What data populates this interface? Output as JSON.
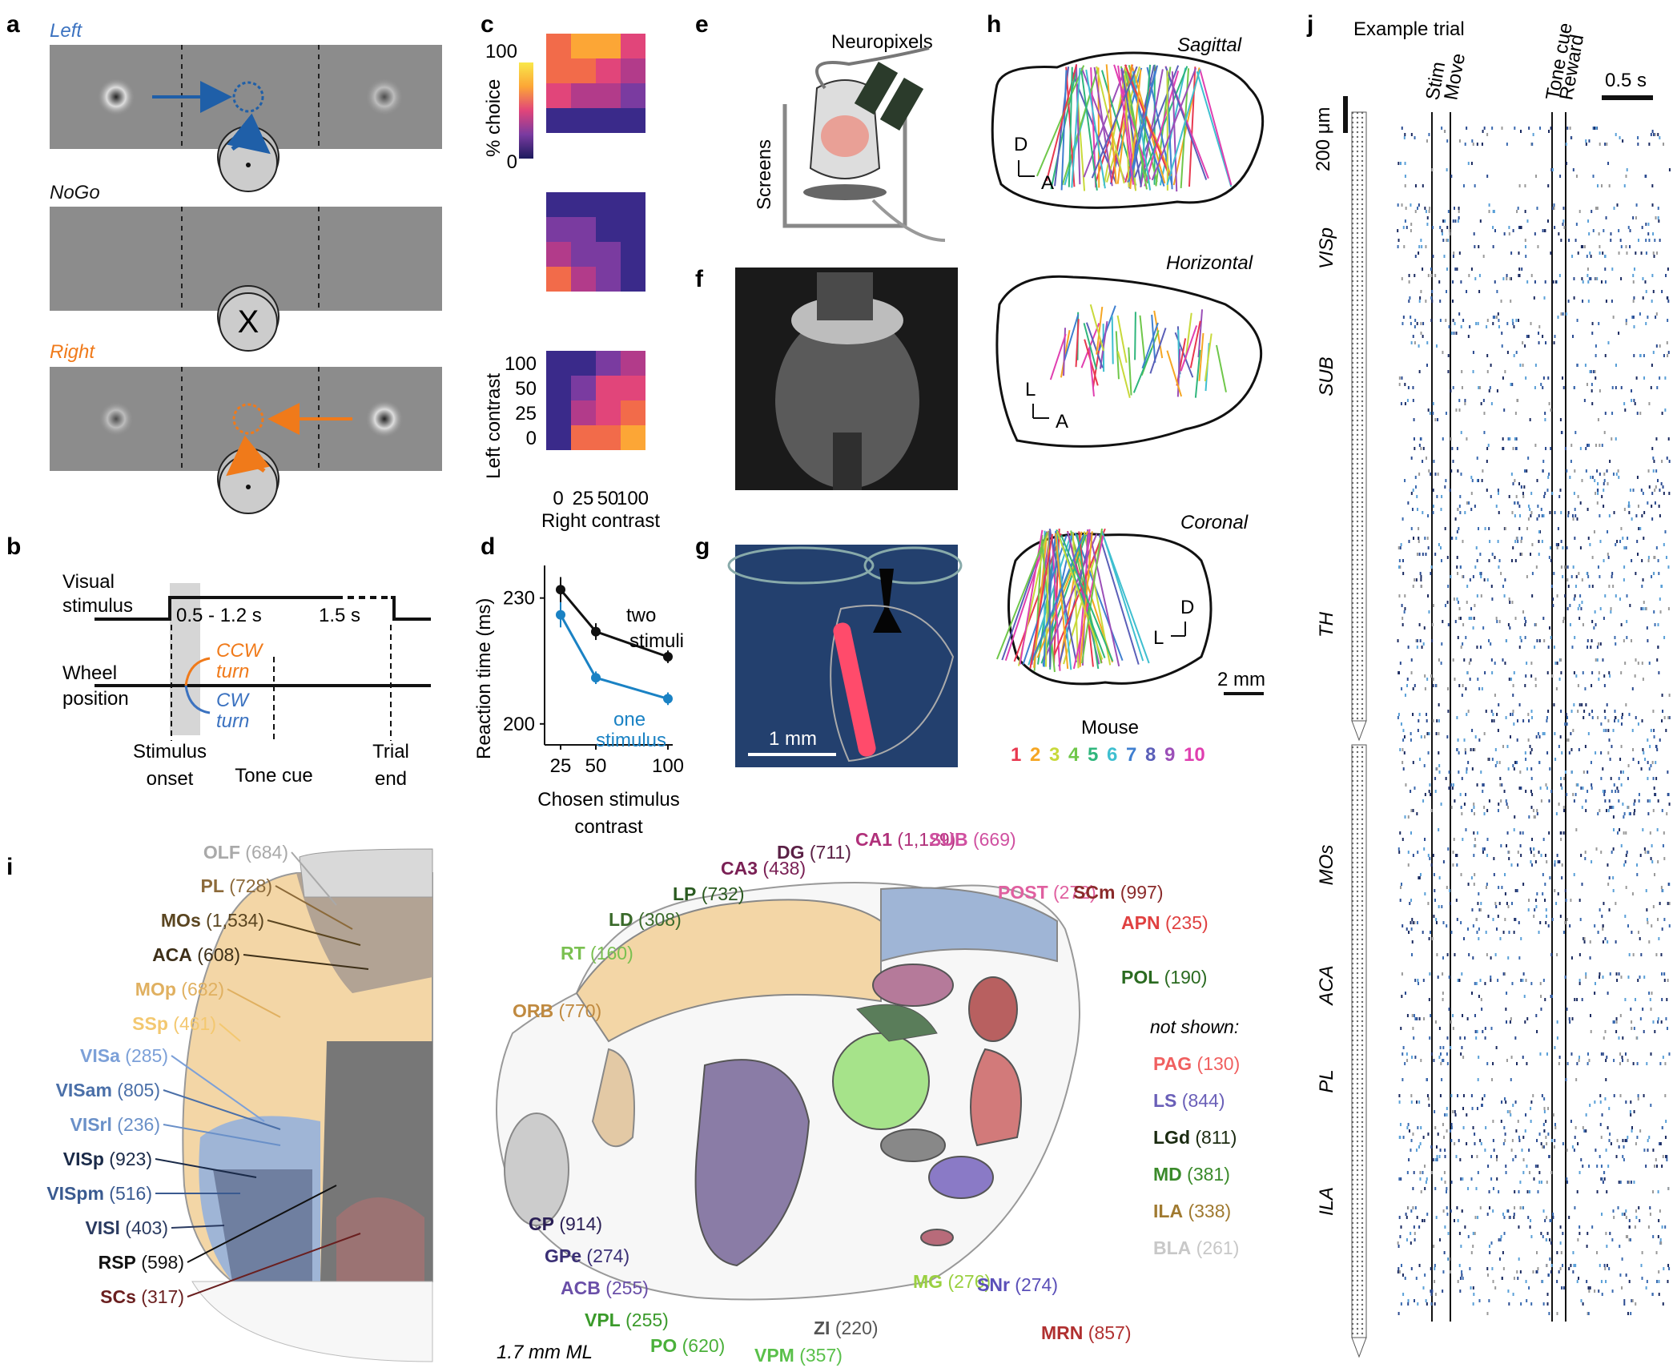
{
  "panels": {
    "a": "a",
    "b": "b",
    "c": "c",
    "d": "d",
    "e": "e",
    "f": "f",
    "g": "g",
    "h": "h",
    "i": "i",
    "j": "j"
  },
  "panel_a": {
    "left": "Left",
    "nogo": "NoGo",
    "right": "Right",
    "x_mark": "X"
  },
  "panel_b": {
    "visual_1": "Visual",
    "visual_2": "stimulus",
    "delay": "0.5 - 1.2 s",
    "iti": "1.5 s",
    "wheel_1": "Wheel",
    "wheel_2": "position",
    "ccw": "CCW",
    "cw": "CW",
    "turn": "turn",
    "onset_1": "Stimulus",
    "onset_2": "onset",
    "tone_cue": "Tone cue",
    "end_1": "Trial",
    "end_2": "end"
  },
  "panel_d": {
    "xlabel_1": "Chosen stimulus",
    "xlabel_2": "contrast",
    "two_1": "two",
    "two_2": "stimuli",
    "one_1": "one",
    "one_2": "stimulus"
  },
  "panel_e": {
    "neuropixels": "Neuropixels",
    "screens": "Screens"
  },
  "panel_g": {
    "scale": "1 mm"
  },
  "panel_h": {
    "sagittal": "Sagittal",
    "horizontal": "Horizontal",
    "coronal": "Coronal",
    "d": "D",
    "a": "A",
    "l": "L",
    "scale": "2 mm",
    "mouse_title": "Mouse",
    "mice": [
      {
        "n": "1",
        "color": "#e8384f"
      },
      {
        "n": "2",
        "color": "#f5a623"
      },
      {
        "n": "3",
        "color": "#c8d93b"
      },
      {
        "n": "4",
        "color": "#6fc74a"
      },
      {
        "n": "5",
        "color": "#2fb67c"
      },
      {
        "n": "6",
        "color": "#3fbfd0"
      },
      {
        "n": "7",
        "color": "#3f7fd0"
      },
      {
        "n": "8",
        "color": "#5a5fb8"
      },
      {
        "n": "9",
        "color": "#9b4fb8"
      },
      {
        "n": "10",
        "color": "#e03fb0"
      }
    ]
  },
  "panel_i": {
    "ml": "1.7 mm ML",
    "left_regions": [
      {
        "abbr": "OLF",
        "count": "(684)",
        "color": "#a9a9a9"
      },
      {
        "abbr": "PL",
        "count": "(728)",
        "color": "#8c6a3a"
      },
      {
        "abbr": "MOs",
        "count": "(1,534)",
        "color": "#5a4520"
      },
      {
        "abbr": "ACA",
        "count": "(608)",
        "color": "#3d2f18"
      },
      {
        "abbr": "MOp",
        "count": "(682)",
        "color": "#e0b060"
      },
      {
        "abbr": "SSp",
        "count": "(461)",
        "color": "#f3c870"
      },
      {
        "abbr": "VISa",
        "count": "(285)",
        "color": "#7ca0d8"
      },
      {
        "abbr": "VISam",
        "count": "(805)",
        "color": "#4a6fa8"
      },
      {
        "abbr": "VISrl",
        "count": "(236)",
        "color": "#6a90c8"
      },
      {
        "abbr": "VISp",
        "count": "(923)",
        "color": "#1a2a48"
      },
      {
        "abbr": "VISpm",
        "count": "(516)",
        "color": "#3a5a90"
      },
      {
        "abbr": "VISl",
        "count": "(403)",
        "color": "#2a3a60"
      },
      {
        "abbr": "RSP",
        "count": "(598)",
        "color": "#111111"
      },
      {
        "abbr": "SCs",
        "count": "(317)",
        "color": "#6a1f1f"
      }
    ],
    "right_regions": [
      {
        "abbr": "CA1",
        "count": "(1,129)",
        "color": "#b0307a"
      },
      {
        "abbr": "SUB",
        "count": "(669)",
        "color": "#d050a0"
      },
      {
        "abbr": "DG",
        "count": "(711)",
        "color": "#5a2045"
      },
      {
        "abbr": "CA3",
        "count": "(438)",
        "color": "#7a2055"
      },
      {
        "abbr": "LP",
        "count": "(732)",
        "color": "#2a5a20"
      },
      {
        "abbr": "LD",
        "count": "(308)",
        "color": "#3a6a2a"
      },
      {
        "abbr": "RT",
        "count": "(160)",
        "color": "#7ac050"
      },
      {
        "abbr": "ORB",
        "count": "(770)",
        "color": "#c08a40"
      },
      {
        "abbr": "POST",
        "count": "(272)",
        "color": "#e060a0"
      },
      {
        "abbr": "SCm",
        "count": "(997)",
        "color": "#8a2a2a"
      },
      {
        "abbr": "APN",
        "count": "(235)",
        "color": "#e04040"
      },
      {
        "abbr": "POL",
        "count": "(190)",
        "color": "#2a6a20"
      },
      {
        "abbr": "CP",
        "count": "(914)",
        "color": "#2a1f55"
      },
      {
        "abbr": "GPe",
        "count": "(274)",
        "color": "#3a2f75"
      },
      {
        "abbr": "ACB",
        "count": "(255)",
        "color": "#6a4fa8"
      },
      {
        "abbr": "VPL",
        "count": "(255)",
        "color": "#3a9a2a"
      },
      {
        "abbr": "PO",
        "count": "(620)",
        "color": "#4ab03a"
      },
      {
        "abbr": "VPM",
        "count": "(357)",
        "color": "#5ac04a"
      },
      {
        "abbr": "ZI",
        "count": "(220)",
        "color": "#555555"
      },
      {
        "abbr": "MG",
        "count": "(276)",
        "color": "#9ad040"
      },
      {
        "abbr": "SNr",
        "count": "(274)",
        "color": "#5a4fb8"
      },
      {
        "abbr": "MRN",
        "count": "(857)",
        "color": "#b03030"
      }
    ],
    "not_shown_title": "not shown:",
    "not_shown": [
      {
        "abbr": "PAG",
        "count": "(130)",
        "color": "#f06060"
      },
      {
        "abbr": "LS",
        "count": "(844)",
        "color": "#6a5fb8"
      },
      {
        "abbr": "LGd",
        "count": "(811)",
        "color": "#1a2a10"
      },
      {
        "abbr": "MD",
        "count": "(381)",
        "color": "#3a8a2a"
      },
      {
        "abbr": "ILA",
        "count": "(338)",
        "color": "#a07a30"
      },
      {
        "abbr": "BLA",
        "count": "(261)",
        "color": "#c8c8c8"
      }
    ]
  },
  "panel_j": {
    "title": "Example trial",
    "time_scale": "0.5 s",
    "depth_scale": "200 μm",
    "events": [
      "Stim",
      "Move",
      "Tone cue",
      "Reward"
    ],
    "regions": [
      "VISp",
      "SUB",
      "TH",
      "MOs",
      "ACA",
      "PL",
      "ILA"
    ]
  },
  "chart_data": [
    {
      "type": "heatmap",
      "title": "",
      "xlabel": "Right contrast",
      "ylabel": "Left contrast",
      "x_categories": [
        "0",
        "25",
        "50",
        "100"
      ],
      "y_categories": [
        "100",
        "50",
        "25",
        "0"
      ],
      "colorbar_label": "% choice",
      "colorbar_max": "100",
      "colorbar_min": "0",
      "colormap": [
        "#1c1a5e",
        "#3a2a8a",
        "#7a3ba0",
        "#b23b8a",
        "#e1457a",
        "#f26b4a",
        "#fca636",
        "#f9e84a"
      ],
      "matrices": [
        {
          "name": "",
          "values": [
            [
              0.78,
              0.83,
              0.88,
              0.6
            ],
            [
              0.72,
              0.68,
              0.55,
              0.4
            ],
            [
              0.62,
              0.48,
              0.36,
              0.22
            ],
            [
              0.18,
              0.15,
              0.12,
              0.12
            ]
          ]
        },
        {
          "name": "",
          "values": [
            [
              0.15,
              0.14,
              0.14,
              0.13
            ],
            [
              0.28,
              0.25,
              0.2,
              0.16
            ],
            [
              0.45,
              0.32,
              0.24,
              0.18
            ],
            [
              0.65,
              0.4,
              0.3,
              0.2
            ]
          ]
        },
        {
          "name": "",
          "values": [
            [
              0.12,
              0.2,
              0.32,
              0.45
            ],
            [
              0.12,
              0.32,
              0.5,
              0.62
            ],
            [
              0.14,
              0.45,
              0.62,
              0.75
            ],
            [
              0.2,
              0.68,
              0.78,
              0.9
            ]
          ]
        }
      ]
    },
    {
      "type": "line",
      "title": "",
      "xlabel": "Chosen stimulus contrast",
      "ylabel": "Reaction time (ms)",
      "x": [
        25,
        50,
        100
      ],
      "xticks": [
        "25",
        "50",
        "100"
      ],
      "yticks": [
        "200",
        "230"
      ],
      "ylim": [
        195,
        237
      ],
      "series": [
        {
          "name": "two stimuli",
          "color": "#111111",
          "values": [
            232,
            222,
            216
          ],
          "err": [
            3,
            2,
            1.5
          ]
        },
        {
          "name": "one stimulus",
          "color": "#1a82c4",
          "values": [
            226,
            211,
            206
          ],
          "err": [
            3,
            1.5,
            1.5
          ]
        }
      ]
    }
  ]
}
